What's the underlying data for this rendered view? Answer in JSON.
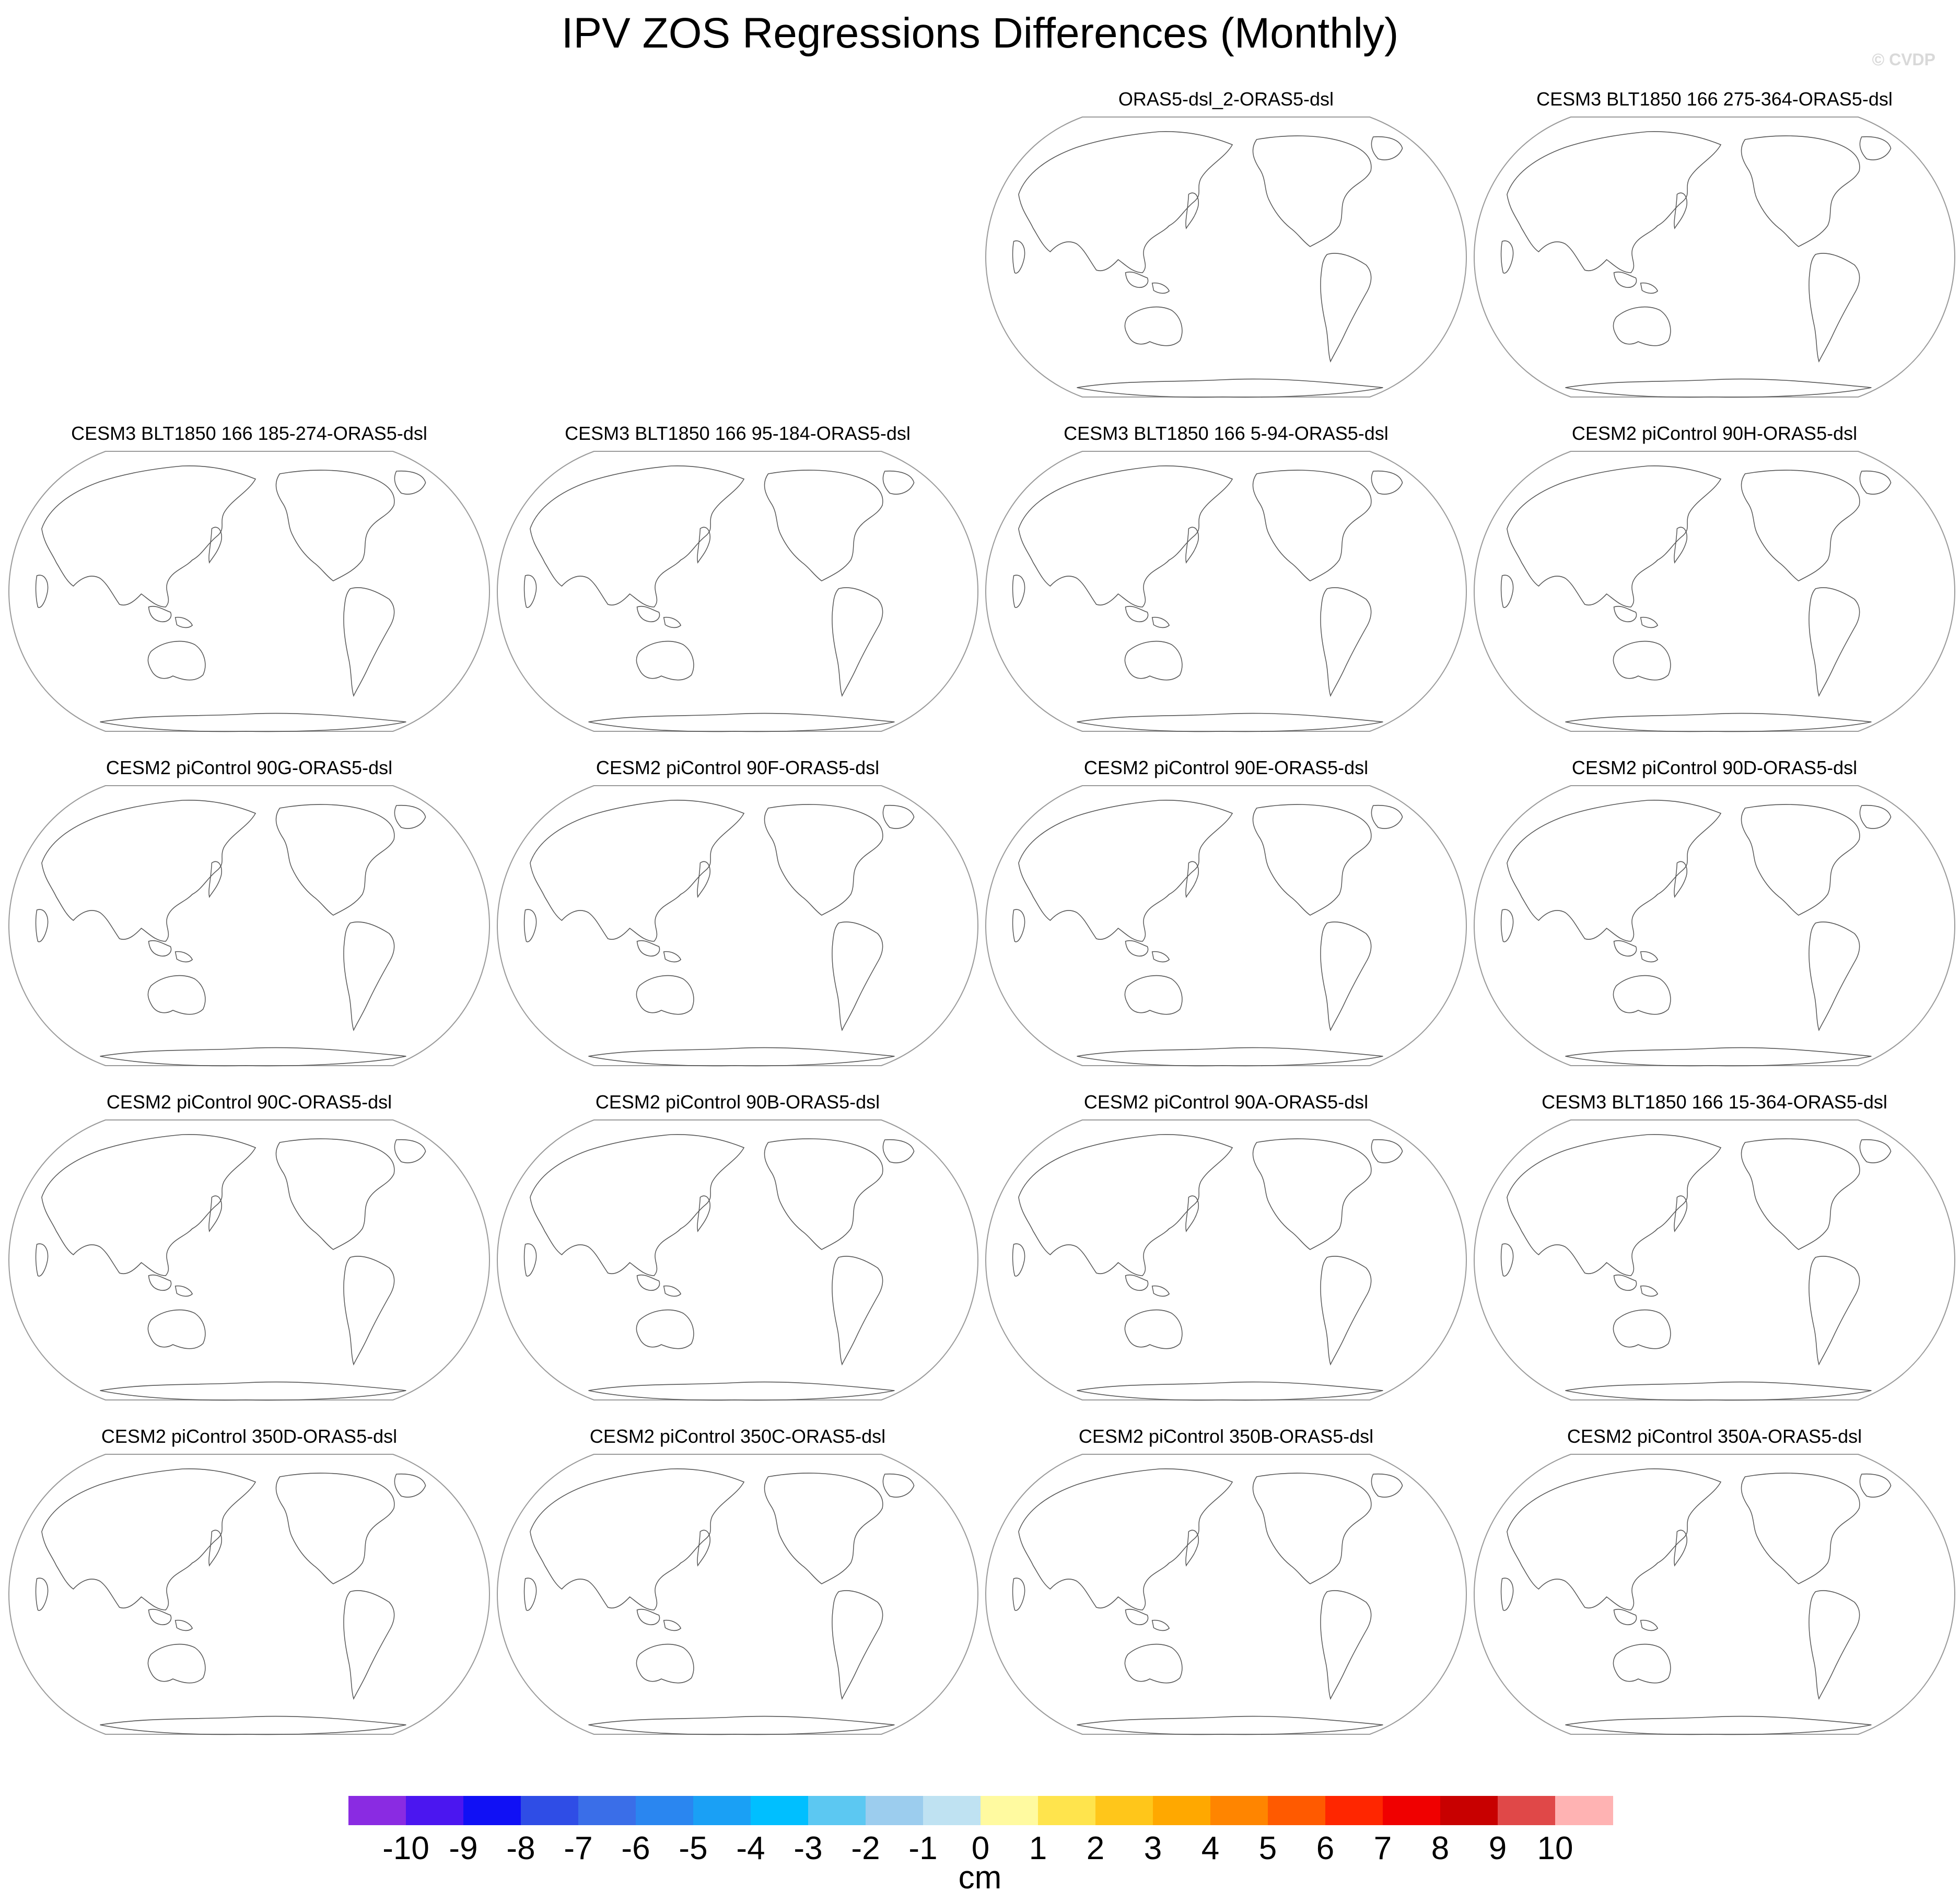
{
  "title": "IPV ZOS Regressions Differences (Monthly)",
  "watermark": "© CVDP",
  "panels": [
    {
      "label": "ORAS5-dsl_2-ORAS5-dsl",
      "row": 0,
      "col": 2
    },
    {
      "label": "CESM3 BLT1850 166 275-364-ORAS5-dsl",
      "row": 0,
      "col": 3
    },
    {
      "label": "CESM3 BLT1850 166 185-274-ORAS5-dsl",
      "row": 1,
      "col": 0
    },
    {
      "label": "CESM3 BLT1850 166 95-184-ORAS5-dsl",
      "row": 1,
      "col": 1
    },
    {
      "label": "CESM3 BLT1850 166 5-94-ORAS5-dsl",
      "row": 1,
      "col": 2
    },
    {
      "label": "CESM2 piControl 90H-ORAS5-dsl",
      "row": 1,
      "col": 3
    },
    {
      "label": "CESM2 piControl 90G-ORAS5-dsl",
      "row": 2,
      "col": 0
    },
    {
      "label": "CESM2 piControl 90F-ORAS5-dsl",
      "row": 2,
      "col": 1
    },
    {
      "label": "CESM2 piControl 90E-ORAS5-dsl",
      "row": 2,
      "col": 2
    },
    {
      "label": "CESM2 piControl 90D-ORAS5-dsl",
      "row": 2,
      "col": 3
    },
    {
      "label": "CESM2 piControl 90C-ORAS5-dsl",
      "row": 3,
      "col": 0
    },
    {
      "label": "CESM2 piControl 90B-ORAS5-dsl",
      "row": 3,
      "col": 1
    },
    {
      "label": "CESM2 piControl 90A-ORAS5-dsl",
      "row": 3,
      "col": 2
    },
    {
      "label": "CESM3 BLT1850 166 15-364-ORAS5-dsl",
      "row": 3,
      "col": 3
    },
    {
      "label": "CESM2 piControl 350D-ORAS5-dsl",
      "row": 4,
      "col": 0
    },
    {
      "label": "CESM2 piControl 350C-ORAS5-dsl",
      "row": 4,
      "col": 1
    },
    {
      "label": "CESM2 piControl 350B-ORAS5-dsl",
      "row": 4,
      "col": 2
    },
    {
      "label": "CESM2 piControl 350A-ORAS5-dsl",
      "row": 4,
      "col": 3
    }
  ],
  "colorbar": {
    "units": "cm",
    "colors": [
      "#8a2be2",
      "#4b16f0",
      "#1010f5",
      "#2f4de6",
      "#3a6ee8",
      "#2a86f0",
      "#1aa0f5",
      "#00bfff",
      "#5cc8f2",
      "#9ccdee",
      "#bfe2f2",
      "#fffaa0",
      "#ffe44d",
      "#ffc61a",
      "#ffa800",
      "#ff8500",
      "#ff5a00",
      "#ff2600",
      "#f00000",
      "#c80000",
      "#e04848",
      "#ffb3b3"
    ],
    "tick_labels": [
      "-10",
      "-9",
      "-8",
      "-7",
      "-6",
      "-5",
      "-4",
      "-3",
      "-2",
      "-1",
      "0",
      "1",
      "2",
      "3",
      "4",
      "5",
      "6",
      "7",
      "8",
      "9",
      "10"
    ]
  }
}
